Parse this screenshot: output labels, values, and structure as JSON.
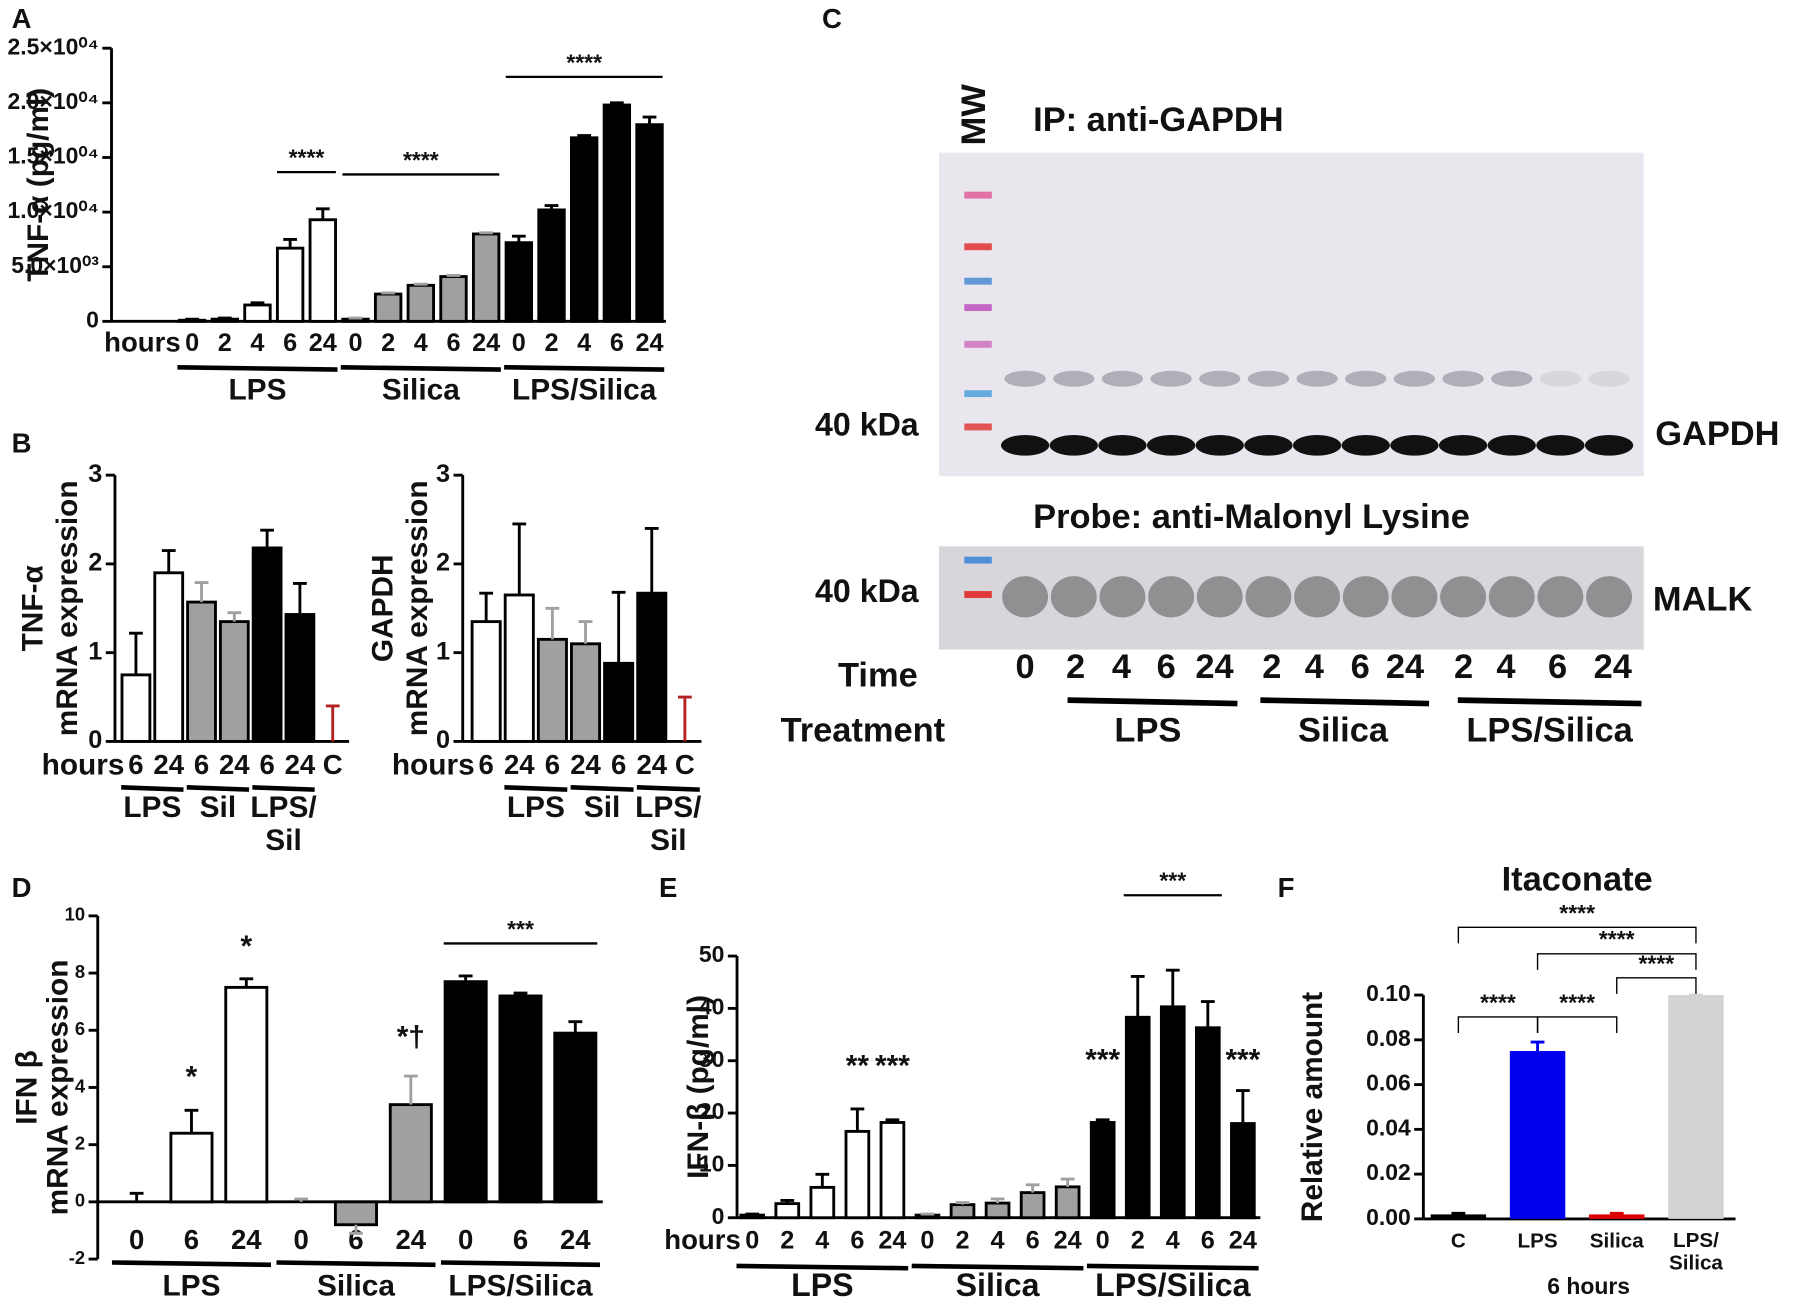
{
  "chart_data": [
    {
      "panel": "A",
      "type": "bar",
      "y_label": [
        "TNF-α (pg/ml)"
      ],
      "x_label": "hours",
      "categories": [
        "0",
        "2",
        "4",
        "6",
        "24",
        "0",
        "2",
        "4",
        "6",
        "24",
        "0",
        "2",
        "4",
        "6",
        "24"
      ],
      "values": [
        100,
        200,
        1500,
        6700,
        9300,
        200,
        2500,
        3300,
        4100,
        8000,
        7200,
        10200,
        16800,
        19800,
        18000
      ],
      "errors": [
        100,
        100,
        200,
        800,
        1000,
        100,
        100,
        100,
        100,
        100,
        600,
        400,
        200,
        200,
        700
      ],
      "bar_colors": [
        "#ffffff",
        "#ffffff",
        "#ffffff",
        "#ffffff",
        "#ffffff",
        "#a0a0a0",
        "#a0a0a0",
        "#a0a0a0",
        "#a0a0a0",
        "#a0a0a0",
        "#000000",
        "#000000",
        "#000000",
        "#000000",
        "#000000"
      ],
      "edge_color": "#000000",
      "ylim": [
        0,
        25000
      ],
      "yticks": [
        0,
        {
          "value": 5000,
          "label": "5.0×10⁰³"
        },
        {
          "value": 10000,
          "label": "1.0×10⁰⁴"
        },
        {
          "value": 15000,
          "label": "1.5×10⁰⁴"
        },
        {
          "value": 20000,
          "label": "2.0×10⁰⁴"
        },
        {
          "value": 25000,
          "label": "2.5×10⁰⁴"
        }
      ],
      "groups": [
        {
          "name": "LPS",
          "from": 0,
          "to": 4
        },
        {
          "name": "Silica",
          "from": 5,
          "to": 9
        },
        {
          "name": "LPS/Silica",
          "from": 10,
          "to": 14
        }
      ],
      "annotations": [
        {
          "text": "****",
          "from": 3,
          "to": 4
        },
        {
          "text": "****",
          "from": 5,
          "to": 9
        },
        {
          "text": "****",
          "from": 10,
          "to": 14
        }
      ]
    },
    {
      "panel": "B",
      "type": "bar",
      "y_label": [
        "TNF-α",
        "mRNA expression"
      ],
      "x_label": "hours",
      "categories": [
        "6",
        "24",
        "6",
        "24",
        "6",
        "24",
        "C"
      ],
      "values": [
        0.75,
        1.9,
        1.57,
        1.35,
        2.18,
        1.43,
        0
      ],
      "errors": [
        0.47,
        0.25,
        0.22,
        0.1,
        0.2,
        0.35,
        0.4
      ],
      "bar_colors": [
        "#ffffff",
        "#ffffff",
        "#a0a0a0",
        "#a0a0a0",
        "#000000",
        "#000000",
        "#b22222"
      ],
      "edge_color": "#000000",
      "ylim": [
        0,
        3
      ],
      "yticks": [
        0,
        1,
        2,
        3
      ],
      "groups": [
        {
          "name": "LPS",
          "from": 0,
          "to": 1
        },
        {
          "name": "Sil",
          "from": 2,
          "to": 3
        },
        {
          "name": "LPS/\nSil",
          "from": 4,
          "to": 5
        }
      ],
      "annotations": []
    },
    {
      "type": "bar",
      "y_label": [
        "GAPDH",
        "mRNA expression"
      ],
      "x_label": "hours",
      "categories": [
        "6",
        "24",
        "6",
        "24",
        "6",
        "24",
        "C"
      ],
      "values": [
        1.35,
        1.65,
        1.15,
        1.1,
        0.88,
        1.67,
        0
      ],
      "errors": [
        0.32,
        0.8,
        0.35,
        0.25,
        0.8,
        0.73,
        0.5
      ],
      "bar_colors": [
        "#ffffff",
        "#ffffff",
        "#a0a0a0",
        "#a0a0a0",
        "#000000",
        "#000000",
        "#b22222"
      ],
      "edge_color": "#000000",
      "ylim": [
        0,
        3
      ],
      "yticks": [
        0,
        1,
        2,
        3
      ],
      "groups": [
        {
          "name": "LPS",
          "from": 1,
          "to": 2
        },
        {
          "name": "Sil",
          "from": 3,
          "to": 4
        },
        {
          "name": "LPS/\nSil",
          "from": 5,
          "to": 6
        }
      ],
      "annotations": []
    },
    {
      "panel": "D",
      "type": "bar",
      "y_label": [
        "IFN β",
        "mRNA expression"
      ],
      "categories": [
        "0",
        "6",
        "24",
        "0",
        "6",
        "24",
        "0",
        "6",
        "24"
      ],
      "values": [
        0,
        2.4,
        7.5,
        0,
        -0.8,
        3.4,
        7.7,
        7.2,
        5.9
      ],
      "errors": [
        0.3,
        0.8,
        0.3,
        0.1,
        0.3,
        1.0,
        0.2,
        0.1,
        0.4
      ],
      "bar_colors": [
        "#ffffff",
        "#ffffff",
        "#ffffff",
        "#a0a0a0",
        "#a0a0a0",
        "#a0a0a0",
        "#000000",
        "#000000",
        "#000000"
      ],
      "edge_color": "#000000",
      "ylim": [
        -2,
        10
      ],
      "yticks": [
        -2,
        0,
        2,
        4,
        6,
        8,
        10
      ],
      "groups": [
        {
          "name": "LPS",
          "from": 0,
          "to": 2
        },
        {
          "name": "Silica",
          "from": 3,
          "to": 5
        },
        {
          "name": "LPS/Silica",
          "from": 6,
          "to": 8
        }
      ],
      "annotations": [
        {
          "text": "*",
          "from": 1,
          "to": 1
        },
        {
          "text": "*",
          "from": 2,
          "to": 2,
          "color": "#777777"
        },
        {
          "text": "*†",
          "from": 5,
          "to": 5
        },
        {
          "text": "***",
          "from": 6,
          "to": 8
        }
      ]
    },
    {
      "panel": "E",
      "type": "bar",
      "y_label": [
        "IFN-β (pg/ml)"
      ],
      "x_label": "hours",
      "categories": [
        "0",
        "2",
        "4",
        "6",
        "24",
        "0",
        "2",
        "4",
        "6",
        "24",
        "0",
        "2",
        "4",
        "6",
        "24"
      ],
      "values": [
        0.5,
        2.7,
        5.8,
        16.5,
        18.2,
        0.5,
        2.5,
        2.8,
        4.8,
        5.9,
        18.2,
        38.3,
        40.3,
        36.3,
        18
      ],
      "errors": [
        0.2,
        0.6,
        2.5,
        4.3,
        0.5,
        0.2,
        0.4,
        0.8,
        1.5,
        1.5,
        0.5,
        7.8,
        7,
        5,
        6.3
      ],
      "bar_colors": [
        "#ffffff",
        "#ffffff",
        "#ffffff",
        "#ffffff",
        "#ffffff",
        "#a0a0a0",
        "#a0a0a0",
        "#a0a0a0",
        "#a0a0a0",
        "#a0a0a0",
        "#000000",
        "#000000",
        "#000000",
        "#000000",
        "#000000"
      ],
      "edge_color": "#000000",
      "ylim": [
        0,
        50
      ],
      "yticks": [
        0,
        10,
        20,
        30,
        40,
        50
      ],
      "groups": [
        {
          "name": "LPS",
          "from": 0,
          "to": 4
        },
        {
          "name": "Silica",
          "from": 5,
          "to": 9
        },
        {
          "name": "LPS/Silica",
          "from": 10,
          "to": 14
        }
      ],
      "annotations": [
        {
          "text": "**",
          "from": 3,
          "to": 3
        },
        {
          "text": "***",
          "from": 4,
          "to": 4
        },
        {
          "text": "***",
          "from": 10,
          "to": 10
        },
        {
          "text": "***",
          "from": 11,
          "to": 13
        },
        {
          "text": "***",
          "from": 14,
          "to": 14
        }
      ]
    },
    {
      "panel": "F",
      "type": "bar",
      "title": "Itaconate",
      "y_label": [
        "Relative amount"
      ],
      "x_label": "6 hours",
      "categories": [
        "C",
        "LPS",
        "Silica",
        "LPS/\nSilica"
      ],
      "values": [
        0.002,
        0.075,
        0.002,
        0.1
      ],
      "errors": [
        0.0005,
        0.004,
        0.0005,
        0
      ],
      "bar_colors": [
        "#000000",
        "#0000ee",
        "#dd0000",
        "#d3d3d3"
      ],
      "ylim": [
        0,
        0.1
      ],
      "yticks": [
        {
          "value": 0,
          "label": "0.00"
        },
        0.02,
        0.04,
        0.06,
        0.08,
        {
          "value": 0.1,
          "label": "0.10"
        }
      ],
      "bracket": true,
      "groups": [],
      "annotations": [
        {
          "text": "****",
          "from": 0,
          "to": 1
        },
        {
          "text": "****",
          "from": 1,
          "to": 2
        },
        {
          "text": "****",
          "from": 0,
          "to": 3
        },
        {
          "text": "****",
          "from": 1,
          "to": 3
        },
        {
          "text": "****",
          "from": 2,
          "to": 3
        }
      ]
    }
  ],
  "blot": {
    "panel": "C",
    "mw": "MW",
    "ip_label": "IP:  anti-GAPDH",
    "upper_kda": "40 kDa",
    "upper_band": "GAPDH",
    "probe_label": "Probe: anti-Malonyl Lysine",
    "lower_kda": "40 kDa",
    "lower_band": "MALK",
    "time_label": "Time",
    "times": [
      "0",
      "2",
      "4",
      "6",
      "24",
      "2",
      "4",
      "6",
      "24",
      "2",
      "4",
      "6",
      "24"
    ],
    "treatment_label": "Treatment",
    "treatments": [
      "LPS",
      "Silica",
      "LPS/Silica"
    ]
  }
}
